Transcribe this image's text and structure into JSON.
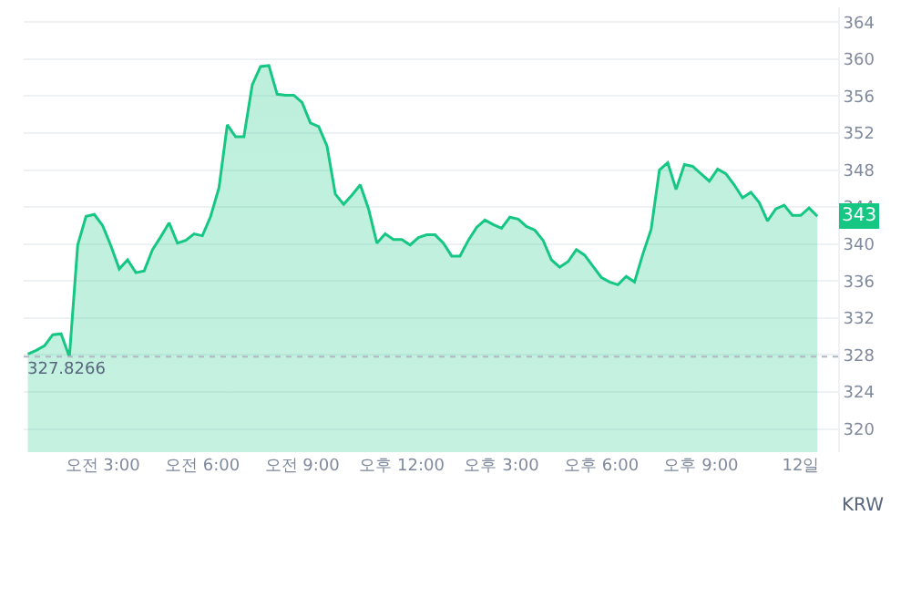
{
  "chart_data": {
    "type": "area",
    "categories": [
      null,
      null,
      null,
      null,
      null,
      null,
      null,
      null,
      null,
      "오전 3:00",
      null,
      null,
      null,
      null,
      null,
      null,
      null,
      null,
      null,
      null,
      null,
      "오전 6:00",
      null,
      null,
      null,
      null,
      null,
      null,
      null,
      null,
      null,
      null,
      null,
      "오전 9:00",
      null,
      null,
      null,
      null,
      null,
      null,
      null,
      null,
      null,
      null,
      null,
      "오후 12:00",
      null,
      null,
      null,
      null,
      null,
      null,
      null,
      null,
      null,
      null,
      null,
      "오후 3:00",
      null,
      null,
      null,
      null,
      null,
      null,
      null,
      null,
      null,
      null,
      null,
      "오후 6:00",
      null,
      null,
      null,
      null,
      null,
      null,
      null,
      null,
      null,
      null,
      null,
      "오후 9:00",
      null,
      null,
      null,
      null,
      null,
      null,
      null,
      null,
      null,
      null,
      null,
      "12일",
      null,
      null
    ],
    "series": [
      {
        "color": "#16c784",
        "values": [
          328.1,
          328.5,
          329.0,
          330.2,
          330.3,
          327.8,
          339.9,
          343.0,
          343.2,
          342.0,
          339.8,
          337.3,
          338.3,
          336.9,
          337.1,
          339.4,
          340.8,
          342.3,
          340.1,
          340.4,
          341.1,
          340.9,
          343.0,
          346.1,
          352.9,
          351.6,
          351.6,
          357.2,
          359.2,
          359.3,
          356.2,
          356.1,
          356.1,
          355.3,
          353.1,
          352.7,
          350.6,
          345.4,
          344.3,
          345.3,
          346.4,
          343.8,
          340.1,
          341.1,
          340.5,
          340.5,
          339.9,
          340.7,
          341.0,
          341.0,
          340.1,
          338.7,
          338.7,
          340.4,
          341.8,
          342.6,
          342.1,
          341.7,
          342.9,
          342.7,
          341.9,
          341.5,
          340.4,
          338.3,
          337.5,
          338.1,
          339.4,
          338.8,
          337.6,
          336.4,
          335.9,
          335.6,
          336.5,
          335.9,
          338.9,
          341.6,
          348.0,
          348.8,
          345.9,
          348.6,
          348.4,
          347.6,
          346.8,
          348.1,
          347.6,
          346.4,
          345.0,
          345.6,
          344.5,
          342.5,
          343.8,
          344.2,
          343.1,
          343.1,
          343.9,
          343
        ]
      }
    ],
    "ylim": [
      317.5,
      365.6
    ],
    "yticks": [
      320,
      324,
      328,
      332,
      336,
      340,
      344,
      348,
      352,
      356,
      360,
      364
    ],
    "grid": "y",
    "ref_lines": [
      {
        "axis": "y",
        "value": 327.8266,
        "label": "327.8266",
        "line_style": "dotted",
        "color": "#b0b6c3"
      }
    ],
    "annotations": [
      {
        "text": "343",
        "y": 343
      },
      "KRW"
    ]
  }
}
